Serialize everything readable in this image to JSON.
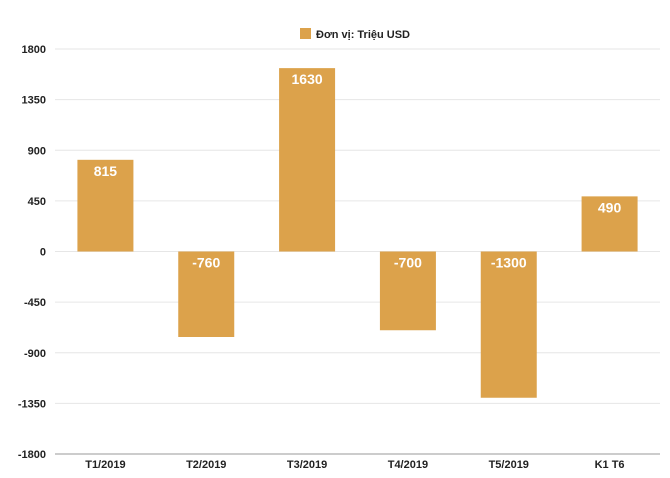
{
  "chart_data": {
    "type": "bar",
    "title": "",
    "xlabel": "",
    "ylabel": "",
    "categories": [
      "T1/2019",
      "T2/2019",
      "T3/2019",
      "T4/2019",
      "T5/2019",
      "K1 T6"
    ],
    "series": [
      {
        "name": "Đơn vị: Triệu USD",
        "values": [
          815,
          -760,
          1630,
          -700,
          -1300,
          490
        ]
      }
    ],
    "data_labels": [
      "815",
      "-760",
      "1630",
      "-700",
      "-1300",
      "490"
    ],
    "ylim": [
      -1800,
      1800
    ],
    "yticks": [
      1800,
      1350,
      900,
      450,
      0,
      -450,
      -900,
      -1350,
      -1800
    ],
    "ytick_labels": [
      "1800",
      "1350",
      "900",
      "450",
      "0",
      "-450",
      "-900",
      "-1350",
      "-1800"
    ],
    "grid": true,
    "legend_position": "top-center",
    "colors": {
      "bar": "#dca24b",
      "grid": "#e6e6e6",
      "axis": "#999999",
      "label": "#ffffff"
    }
  }
}
